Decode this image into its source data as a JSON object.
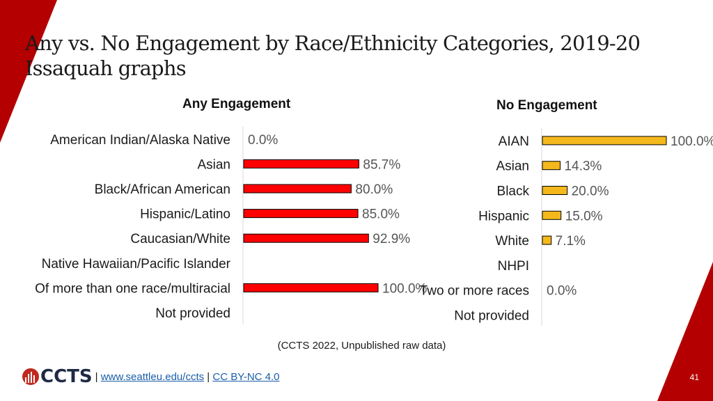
{
  "slide": {
    "title_line1": "Any vs. No Engagement by Race/Ethnicity Categories, 2019-20",
    "title_line2": "Issaquah graphs",
    "source": "(CCTS 2022, Unpublished raw data)",
    "footer": {
      "logo_text": "CCTS",
      "sep1": "|",
      "link1": "www.seattleu.edu/ccts",
      "sep2": "|",
      "link2": "CC BY-NC 4.0"
    },
    "page_number": "41",
    "colors": {
      "accent": "#c00000",
      "any_bar": "#ff0000",
      "no_bar": "#f5b81c",
      "bar_border": "#000000"
    }
  },
  "chart_data": [
    {
      "type": "bar",
      "orientation": "horizontal",
      "title": "Any Engagement",
      "categories": [
        "American Indian/Alaska Native",
        "Asian",
        "Black/African American",
        "Hispanic/Latino",
        "Caucasian/White",
        "Native Hawaiian/Pacific Islander",
        "Of more than one race/multiracial",
        "Not provided"
      ],
      "values": [
        0.0,
        85.7,
        80.0,
        85.0,
        92.9,
        null,
        100.0,
        null
      ],
      "labels": [
        "0.0%",
        "85.7%",
        "80.0%",
        "85.0%",
        "92.9%",
        "",
        "100.0%",
        ""
      ],
      "xlim": [
        0,
        100
      ]
    },
    {
      "type": "bar",
      "orientation": "horizontal",
      "title": "No Engagement",
      "categories": [
        "AIAN",
        "Asian",
        "Black",
        "Hispanic",
        "White",
        "NHPI",
        "Two or more races",
        "Not provided"
      ],
      "values": [
        100.0,
        14.3,
        20.0,
        15.0,
        7.1,
        null,
        0.0,
        null
      ],
      "labels": [
        "100.0%",
        "14.3%",
        "20.0%",
        "15.0%",
        "7.1%",
        "",
        "0.0%",
        ""
      ],
      "xlim": [
        0,
        100
      ]
    }
  ]
}
